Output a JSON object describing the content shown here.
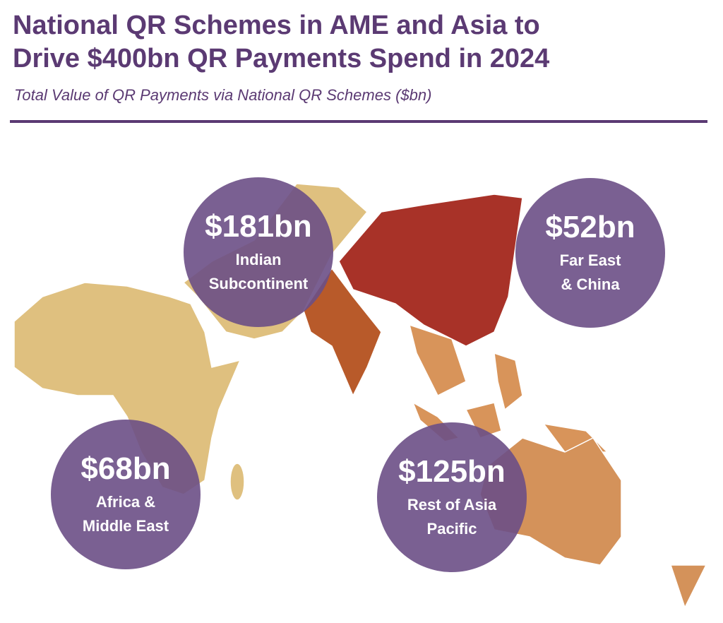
{
  "header": {
    "title_lines": [
      "National QR Schemes in AME and Asia to",
      "Drive $400bn QR Payments Spend in 2024"
    ],
    "subtitle": "Total Value of QR Payments via National QR Schemes ($bn)"
  },
  "regions": [
    {
      "value_label": "$181bn",
      "name_lines": [
        "Indian",
        "Subcontinent"
      ]
    },
    {
      "value_label": "$52bn",
      "name_lines": [
        "Far East",
        "& China"
      ]
    },
    {
      "value_label": "$68bn",
      "name_lines": [
        "Africa &",
        "Middle East"
      ]
    },
    {
      "value_label": "$125bn",
      "name_lines": [
        "Rest of Asia",
        "Pacific"
      ]
    }
  ]
}
